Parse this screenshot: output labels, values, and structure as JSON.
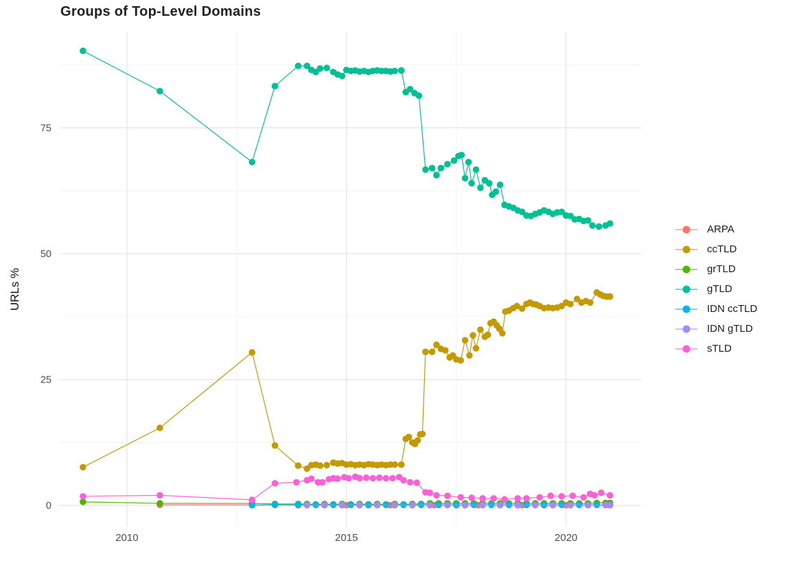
{
  "figure": {
    "title": "Groups of Top-Level Domains",
    "y_axis_label": "URLs %"
  },
  "colors": {
    "background": "#ffffff",
    "grid_major": "#e4e4e4",
    "grid_minor": "#f1f1f1",
    "axis_text": "#4d4d4d",
    "title_text": "#212121",
    "legend_text": "#1a1a1a"
  },
  "chart_data": {
    "type": "line",
    "title": "Groups of Top-Level Domains",
    "xlabel": "",
    "ylabel": "URLs %",
    "grid": true,
    "legend_position": "right",
    "x_ticks": [
      2010,
      2015,
      2020
    ],
    "x_minor_ticks": [
      2012.5,
      2017.5
    ],
    "y_ticks": [
      0,
      25,
      50,
      75
    ],
    "y_minor_ticks": [
      12.5,
      37.5,
      62.5,
      87.5
    ],
    "xlim": [
      2008.47,
      2021.71
    ],
    "ylim": [
      -4.2,
      94.0
    ],
    "series": [
      {
        "name": "ARPA",
        "color": "#F8766D",
        "points": [
          [
            2010.75,
            0.1
          ],
          [
            2012.85,
            0.1
          ],
          [
            2013.37,
            0.1
          ],
          [
            2013.9,
            0.05
          ],
          [
            2014.5,
            0.05
          ],
          [
            2015,
            0.05
          ],
          [
            2015.5,
            0.05
          ],
          [
            2016,
            0.05
          ],
          [
            2016.5,
            0.05
          ],
          [
            2017,
            0.05
          ],
          [
            2017.5,
            0.05
          ],
          [
            2018,
            0.05
          ],
          [
            2018.5,
            0.05
          ],
          [
            2019,
            0.05
          ],
          [
            2019.5,
            0.05
          ],
          [
            2020,
            0.05
          ],
          [
            2020.5,
            0.05
          ],
          [
            2021,
            0.05
          ]
        ]
      },
      {
        "name": "ccTLD",
        "color": "#C49A00",
        "points": [
          [
            2009,
            7.6
          ],
          [
            2010.75,
            15.4
          ],
          [
            2012.85,
            30.4
          ],
          [
            2013.37,
            11.9
          ],
          [
            2013.9,
            7.9
          ],
          [
            2014.1,
            7.3
          ],
          [
            2014.2,
            8
          ],
          [
            2014.3,
            8.1
          ],
          [
            2014.4,
            7.9
          ],
          [
            2014.55,
            8
          ],
          [
            2014.7,
            8.5
          ],
          [
            2014.8,
            8.3
          ],
          [
            2014.9,
            8.4
          ],
          [
            2015,
            8.1
          ],
          [
            2015.1,
            8.2
          ],
          [
            2015.2,
            8
          ],
          [
            2015.3,
            8.1
          ],
          [
            2015.4,
            8
          ],
          [
            2015.5,
            8.2
          ],
          [
            2015.6,
            8.1
          ],
          [
            2015.7,
            8
          ],
          [
            2015.8,
            8.1
          ],
          [
            2015.9,
            8
          ],
          [
            2016,
            8.1
          ],
          [
            2016.1,
            8.1
          ],
          [
            2016.25,
            8.1
          ],
          [
            2016.35,
            13.2
          ],
          [
            2016.42,
            13.6
          ],
          [
            2016.5,
            12.5
          ],
          [
            2016.56,
            12.2
          ],
          [
            2016.62,
            12.9
          ],
          [
            2016.68,
            14.1
          ],
          [
            2016.73,
            14.2
          ],
          [
            2016.8,
            30.5
          ],
          [
            2016.95,
            30.5
          ],
          [
            2017.05,
            31.9
          ],
          [
            2017.15,
            31.1
          ],
          [
            2017.25,
            30.8
          ],
          [
            2017.35,
            29.4
          ],
          [
            2017.42,
            29.8
          ],
          [
            2017.5,
            29
          ],
          [
            2017.6,
            28.8
          ],
          [
            2017.7,
            32.8
          ],
          [
            2017.8,
            29.8
          ],
          [
            2017.88,
            33.8
          ],
          [
            2017.95,
            31.2
          ],
          [
            2018.05,
            34.9
          ],
          [
            2018.15,
            33.5
          ],
          [
            2018.22,
            33.9
          ],
          [
            2018.28,
            36.2
          ],
          [
            2018.35,
            36.5
          ],
          [
            2018.42,
            35.8
          ],
          [
            2018.48,
            35.1
          ],
          [
            2018.55,
            34.2
          ],
          [
            2018.62,
            38.5
          ],
          [
            2018.7,
            38.7
          ],
          [
            2018.8,
            39.2
          ],
          [
            2018.88,
            39.6
          ],
          [
            2019,
            39.1
          ],
          [
            2019.1,
            40
          ],
          [
            2019.18,
            40.3
          ],
          [
            2019.25,
            40
          ],
          [
            2019.32,
            39.9
          ],
          [
            2019.4,
            39.6
          ],
          [
            2019.5,
            39.2
          ],
          [
            2019.6,
            39.3
          ],
          [
            2019.7,
            39.2
          ],
          [
            2019.8,
            39.3
          ],
          [
            2019.9,
            39.6
          ],
          [
            2020,
            40.3
          ],
          [
            2020.1,
            40
          ],
          [
            2020.25,
            41
          ],
          [
            2020.35,
            40.3
          ],
          [
            2020.45,
            40.6
          ],
          [
            2020.55,
            40.3
          ],
          [
            2020.7,
            42.3
          ],
          [
            2020.78,
            41.9
          ],
          [
            2020.85,
            41.6
          ],
          [
            2020.92,
            41.5
          ],
          [
            2021,
            41.5
          ]
        ]
      },
      {
        "name": "grTLD",
        "color": "#53B400",
        "points": [
          [
            2009,
            0.7
          ],
          [
            2010.75,
            0.4
          ],
          [
            2012.85,
            0.4
          ],
          [
            2013.37,
            0.3
          ],
          [
            2013.9,
            0.3
          ],
          [
            2014.1,
            0.3
          ],
          [
            2014.3,
            0.2
          ],
          [
            2014.5,
            0.3
          ],
          [
            2014.7,
            0.2
          ],
          [
            2014.9,
            0.3
          ],
          [
            2015.1,
            0.2
          ],
          [
            2015.3,
            0.3
          ],
          [
            2015.5,
            0.2
          ],
          [
            2015.7,
            0.3
          ],
          [
            2015.9,
            0.2
          ],
          [
            2016.1,
            0.3
          ],
          [
            2016.3,
            0.2
          ],
          [
            2016.5,
            0.3
          ],
          [
            2016.7,
            0.3
          ],
          [
            2016.9,
            0.4
          ],
          [
            2017.1,
            0.4
          ],
          [
            2017.3,
            0.4
          ],
          [
            2017.5,
            0.4
          ],
          [
            2017.7,
            0.4
          ],
          [
            2017.9,
            0.4
          ],
          [
            2018.1,
            0.4
          ],
          [
            2018.3,
            0.4
          ],
          [
            2018.5,
            0.4
          ],
          [
            2018.7,
            0.4
          ],
          [
            2018.9,
            0.4
          ],
          [
            2019.1,
            0.4
          ],
          [
            2019.3,
            0.4
          ],
          [
            2019.5,
            0.4
          ],
          [
            2019.7,
            0.4
          ],
          [
            2019.9,
            0.4
          ],
          [
            2020.1,
            0.4
          ],
          [
            2020.3,
            0.4
          ],
          [
            2020.5,
            0.4
          ],
          [
            2020.7,
            0.5
          ],
          [
            2020.9,
            0.5
          ],
          [
            2021,
            0.5
          ]
        ]
      },
      {
        "name": "gTLD",
        "color": "#00C094",
        "points": [
          [
            2009,
            90.3
          ],
          [
            2010.75,
            82.3
          ],
          [
            2012.85,
            68.2
          ],
          [
            2013.37,
            83.3
          ],
          [
            2013.9,
            87.3
          ],
          [
            2014.1,
            87.3
          ],
          [
            2014.2,
            86.5
          ],
          [
            2014.3,
            86.1
          ],
          [
            2014.4,
            86.8
          ],
          [
            2014.55,
            86.9
          ],
          [
            2014.7,
            86.1
          ],
          [
            2014.8,
            85.6
          ],
          [
            2014.9,
            85.3
          ],
          [
            2015,
            86.5
          ],
          [
            2015.1,
            86.3
          ],
          [
            2015.2,
            86.4
          ],
          [
            2015.3,
            86.2
          ],
          [
            2015.4,
            86.3
          ],
          [
            2015.5,
            86.1
          ],
          [
            2015.6,
            86.3
          ],
          [
            2015.7,
            86.4
          ],
          [
            2015.8,
            86.3
          ],
          [
            2015.9,
            86.3
          ],
          [
            2016,
            86.2
          ],
          [
            2016.1,
            86.3
          ],
          [
            2016.25,
            86.4
          ],
          [
            2016.35,
            82.1
          ],
          [
            2016.45,
            82.7
          ],
          [
            2016.55,
            81.9
          ],
          [
            2016.65,
            81.4
          ],
          [
            2016.8,
            66.7
          ],
          [
            2016.95,
            67
          ],
          [
            2017.05,
            65.6
          ],
          [
            2017.15,
            67
          ],
          [
            2017.3,
            67.8
          ],
          [
            2017.45,
            68.5
          ],
          [
            2017.55,
            69.4
          ],
          [
            2017.62,
            69.6
          ],
          [
            2017.7,
            65
          ],
          [
            2017.78,
            68.2
          ],
          [
            2017.85,
            64
          ],
          [
            2017.95,
            66.7
          ],
          [
            2018.05,
            63.1
          ],
          [
            2018.15,
            64.6
          ],
          [
            2018.25,
            64
          ],
          [
            2018.32,
            61.7
          ],
          [
            2018.4,
            62.3
          ],
          [
            2018.5,
            63.7
          ],
          [
            2018.6,
            59.7
          ],
          [
            2018.7,
            59.4
          ],
          [
            2018.8,
            59.1
          ],
          [
            2018.9,
            58.6
          ],
          [
            2019,
            58.3
          ],
          [
            2019.1,
            57.6
          ],
          [
            2019.2,
            57.5
          ],
          [
            2019.3,
            57.9
          ],
          [
            2019.4,
            58.2
          ],
          [
            2019.5,
            58.6
          ],
          [
            2019.6,
            58.3
          ],
          [
            2019.7,
            57.9
          ],
          [
            2019.8,
            58.2
          ],
          [
            2019.9,
            58.3
          ],
          [
            2020,
            57.6
          ],
          [
            2020.1,
            57.5
          ],
          [
            2020.2,
            56.8
          ],
          [
            2020.3,
            56.9
          ],
          [
            2020.4,
            56.5
          ],
          [
            2020.5,
            56.6
          ],
          [
            2020.6,
            55.6
          ],
          [
            2020.75,
            55.4
          ],
          [
            2020.9,
            55.6
          ],
          [
            2021,
            56
          ]
        ]
      },
      {
        "name": "IDN ccTLD",
        "color": "#00B6EB",
        "points": [
          [
            2012.85,
            0.05
          ],
          [
            2013.37,
            0.1
          ],
          [
            2013.9,
            0.1
          ],
          [
            2014.3,
            0.1
          ],
          [
            2014.7,
            0.1
          ],
          [
            2015.1,
            0.1
          ],
          [
            2015.5,
            0.1
          ],
          [
            2015.9,
            0.1
          ],
          [
            2016.3,
            0.1
          ],
          [
            2016.7,
            0.1
          ],
          [
            2017.1,
            0.1
          ],
          [
            2017.5,
            0.1
          ],
          [
            2017.9,
            0.1
          ],
          [
            2018.3,
            0.1
          ],
          [
            2018.7,
            0.1
          ],
          [
            2019.1,
            0.1
          ],
          [
            2019.5,
            0.1
          ],
          [
            2019.9,
            0.1
          ],
          [
            2020.3,
            0.1
          ],
          [
            2020.7,
            0.1
          ],
          [
            2021,
            0.1
          ]
        ]
      },
      {
        "name": "IDN gTLD",
        "color": "#A58AFF",
        "points": [
          [
            2014.1,
            0.05
          ],
          [
            2014.5,
            0.05
          ],
          [
            2014.9,
            0.05
          ],
          [
            2015.3,
            0.05
          ],
          [
            2015.7,
            0.05
          ],
          [
            2016.1,
            0.05
          ],
          [
            2016.5,
            0.05
          ],
          [
            2016.9,
            0.05
          ],
          [
            2017.3,
            0.05
          ],
          [
            2017.7,
            0.05
          ],
          [
            2018.1,
            0.05
          ],
          [
            2018.5,
            0.05
          ],
          [
            2018.9,
            0.05
          ],
          [
            2019.3,
            0.05
          ],
          [
            2019.7,
            0.05
          ],
          [
            2020.1,
            0.05
          ],
          [
            2020.5,
            0.05
          ],
          [
            2020.9,
            0.05
          ],
          [
            2021,
            0.05
          ]
        ]
      },
      {
        "name": "sTLD",
        "color": "#FB61D7",
        "points": [
          [
            2009,
            1.8
          ],
          [
            2010.75,
            2
          ],
          [
            2012.85,
            1.1
          ],
          [
            2013.37,
            4.4
          ],
          [
            2013.86,
            4.6
          ],
          [
            2014.1,
            5
          ],
          [
            2014.2,
            5.3
          ],
          [
            2014.35,
            4.6
          ],
          [
            2014.45,
            4.6
          ],
          [
            2014.6,
            5.2
          ],
          [
            2014.7,
            5.4
          ],
          [
            2014.8,
            5.3
          ],
          [
            2014.95,
            5.6
          ],
          [
            2015.05,
            5.4
          ],
          [
            2015.2,
            5.7
          ],
          [
            2015.3,
            5.4
          ],
          [
            2015.45,
            5.5
          ],
          [
            2015.6,
            5.4
          ],
          [
            2015.75,
            5.5
          ],
          [
            2015.9,
            5.4
          ],
          [
            2016.05,
            5.4
          ],
          [
            2016.2,
            5.6
          ],
          [
            2016.3,
            5
          ],
          [
            2016.45,
            4.6
          ],
          [
            2016.6,
            4.5
          ],
          [
            2016.8,
            2.6
          ],
          [
            2016.9,
            2.5
          ],
          [
            2017.05,
            2
          ],
          [
            2017.3,
            1.9
          ],
          [
            2017.6,
            1.6
          ],
          [
            2017.85,
            1.5
          ],
          [
            2018.1,
            1.4
          ],
          [
            2018.35,
            1.4
          ],
          [
            2018.6,
            1.2
          ],
          [
            2018.9,
            1.4
          ],
          [
            2019.1,
            1.4
          ],
          [
            2019.4,
            1.6
          ],
          [
            2019.65,
            1.9
          ],
          [
            2019.9,
            1.8
          ],
          [
            2020.15,
            1.9
          ],
          [
            2020.4,
            1.6
          ],
          [
            2020.55,
            2.3
          ],
          [
            2020.65,
            2
          ],
          [
            2020.8,
            2.5
          ],
          [
            2021,
            2
          ]
        ]
      }
    ]
  }
}
